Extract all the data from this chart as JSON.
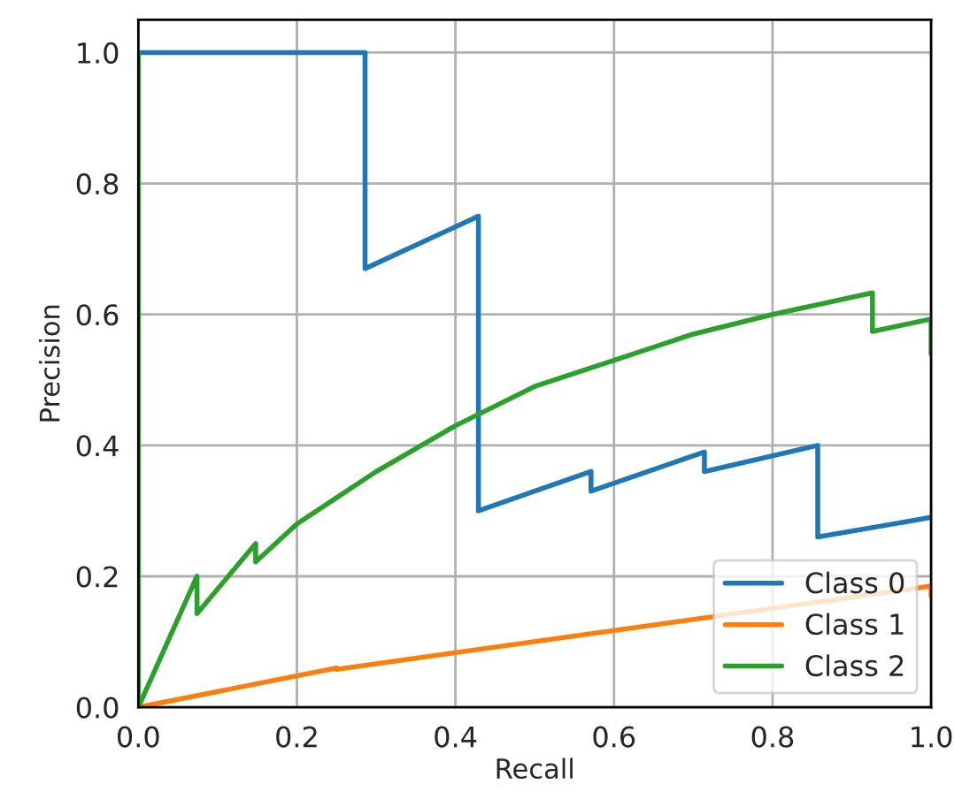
{
  "chart_data": {
    "type": "line",
    "xlabel": "Recall",
    "ylabel": "Precision",
    "xlim": [
      0,
      1
    ],
    "ylim": [
      0,
      1.05
    ],
    "xticks": [
      {
        "value": 0,
        "label": "0.0"
      },
      0.2,
      0.4,
      0.6,
      0.8,
      {
        "value": 1,
        "label": "1.0"
      }
    ],
    "yticks": [
      {
        "value": 0,
        "label": "0.0"
      },
      0.2,
      0.4,
      0.6,
      0.8,
      {
        "value": 1,
        "label": "1.0"
      }
    ],
    "grid": true,
    "legend": "bottom right",
    "line_style": "solid",
    "series": [
      {
        "name": "Class 0",
        "color": "#1f77b4",
        "x": [
          0,
          0.286,
          0.286,
          0.429,
          0.429,
          0.571,
          0.571,
          0.714,
          0.714,
          0.857,
          0.857,
          1.0
        ],
        "values": [
          1.0,
          1.0,
          0.67,
          0.75,
          0.3,
          0.36,
          0.33,
          0.39,
          0.36,
          0.4,
          0.26,
          0.29
        ]
      },
      {
        "name": "Class 1",
        "color": "#ff7f0e",
        "x": [
          0,
          0.25,
          0.25,
          1.0,
          1.0
        ],
        "values": [
          0,
          0.06,
          0.058,
          0.185,
          0.17
        ]
      },
      {
        "name": "Class 2",
        "color": "#2ca02c",
        "x": [
          0,
          0,
          0.074,
          0.074,
          0.148,
          0.148,
          0.2,
          0.25,
          0.3,
          0.4,
          0.5,
          0.6,
          0.7,
          0.8,
          0.926,
          0.926,
          1.0,
          1.0
        ],
        "values": [
          1.0,
          0,
          0.2,
          0.143,
          0.25,
          0.222,
          0.28,
          0.32,
          0.36,
          0.43,
          0.49,
          0.53,
          0.57,
          0.6,
          0.633,
          0.574,
          0.593,
          0.54
        ]
      }
    ]
  }
}
